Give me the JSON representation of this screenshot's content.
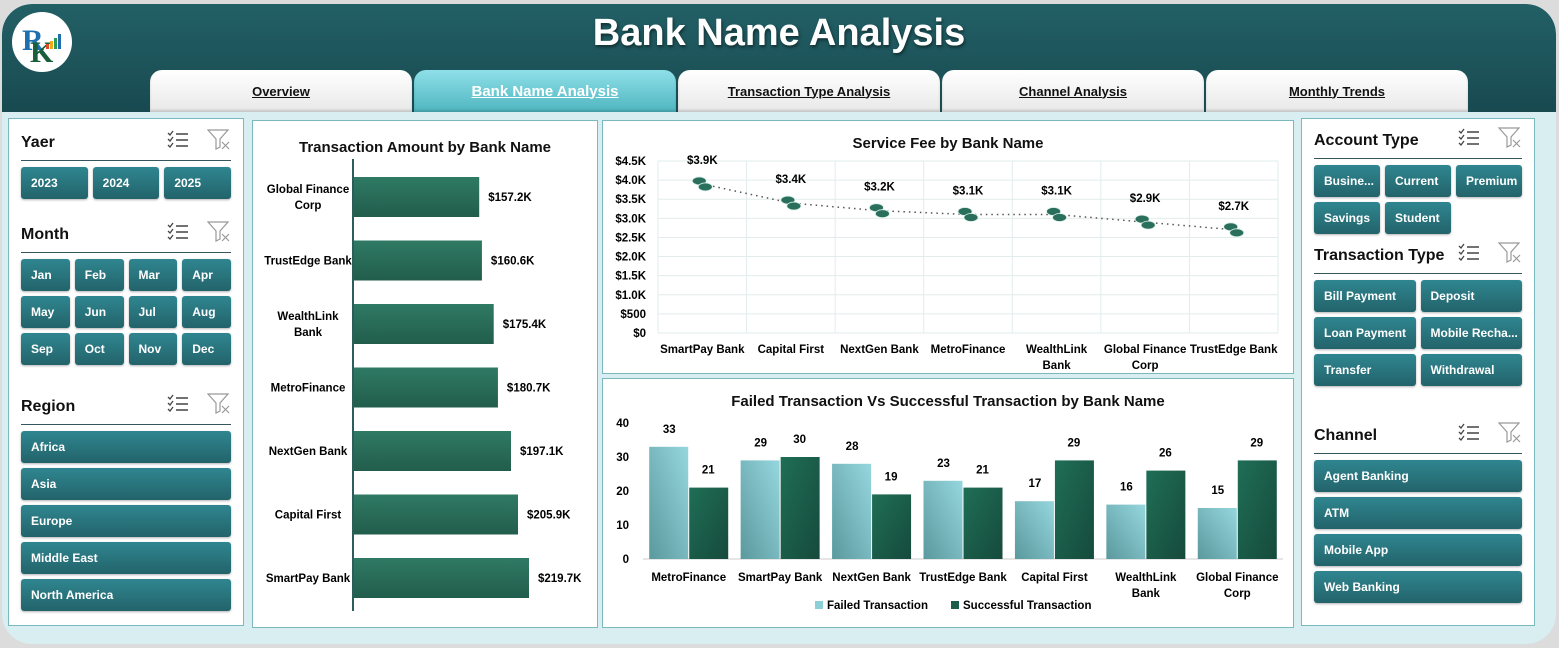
{
  "header": {
    "title": "Bank Name Analysis",
    "tabs": [
      {
        "label": "Overview",
        "active": false
      },
      {
        "label": "Bank Name Analysis",
        "active": true
      },
      {
        "label": "Transaction Type Analysis",
        "active": false
      },
      {
        "label": "Channel Analysis",
        "active": false
      },
      {
        "label": "Monthly Trends",
        "active": false
      }
    ]
  },
  "slicers": {
    "year": {
      "title": "Yaer",
      "items": [
        "2023",
        "2024",
        "2025"
      ]
    },
    "month": {
      "title": "Month",
      "items": [
        "Jan",
        "Feb",
        "Mar",
        "Apr",
        "May",
        "Jun",
        "Jul",
        "Aug",
        "Sep",
        "Oct",
        "Nov",
        "Dec"
      ]
    },
    "region": {
      "title": "Region",
      "items": [
        "Africa",
        "Asia",
        "Europe",
        "Middle East",
        "North America"
      ]
    },
    "account_type": {
      "title": "Account Type",
      "items": [
        "Busine...",
        "Current",
        "Premium",
        "Savings",
        "Student"
      ]
    },
    "transaction_type": {
      "title": "Transaction Type",
      "items": [
        "Bill Payment",
        "Deposit",
        "Loan Payment",
        "Mobile Recha...",
        "Transfer",
        "Withdrawal"
      ]
    },
    "channel": {
      "title": "Channel",
      "items": [
        "Agent Banking",
        "ATM",
        "Mobile App",
        "Web Banking"
      ]
    }
  },
  "icons": {
    "multiselect": "multi-select-icon",
    "clear_filter": "clear-filter-icon"
  },
  "colors": {
    "header": "#1f5a60",
    "slicer_button": "#2a7680",
    "bar_dark": "#2a6e5c",
    "failed": "#8ccfd8",
    "success": "#1a5e4a",
    "active_tab": "#5fc4ce"
  },
  "chart_data": [
    {
      "type": "bar",
      "orientation": "horizontal",
      "title": "Transaction Amount by Bank Name",
      "categories": [
        "Global Finance Corp",
        "TrustEdge Bank",
        "WealthLink Bank",
        "MetroFinance",
        "NextGen Bank",
        "Capital First",
        "SmartPay Bank"
      ],
      "values": [
        157.2,
        160.6,
        175.4,
        180.7,
        197.1,
        205.9,
        219.7
      ],
      "labels": [
        "$157.2K",
        "$160.6K",
        "$175.4K",
        "$180.7K",
        "$197.1K",
        "$205.9K",
        "$219.7K"
      ],
      "xlabel": "",
      "ylabel": ""
    },
    {
      "type": "line",
      "title": "Service Fee by Bank Name",
      "categories": [
        "SmartPay Bank",
        "Capital First",
        "NextGen Bank",
        "MetroFinance",
        "WealthLink Bank",
        "Global Finance Corp",
        "TrustEdge Bank"
      ],
      "values": [
        3900,
        3400,
        3200,
        3100,
        3100,
        2900,
        2700
      ],
      "labels": [
        "$3.9K",
        "$3.4K",
        "$3.2K",
        "$3.1K",
        "$3.1K",
        "$2.9K",
        "$2.7K"
      ],
      "yticks": [
        "$4.5K",
        "$4.0K",
        "$3.5K",
        "$3.0K",
        "$2.5K",
        "$2.0K",
        "$1.5K",
        "$1.0K",
        "$500",
        "$0"
      ],
      "ylim": [
        0,
        4500
      ],
      "grid": true
    },
    {
      "type": "bar",
      "title": "Failed Transaction Vs Successful Transaction by Bank Name",
      "categories": [
        "MetroFinance",
        "SmartPay Bank",
        "NextGen Bank",
        "TrustEdge Bank",
        "Capital First",
        "WealthLink Bank",
        "Global Finance Corp"
      ],
      "series": [
        {
          "name": "Failed Transaction",
          "values": [
            33,
            29,
            28,
            23,
            17,
            16,
            15
          ]
        },
        {
          "name": "Successful Transaction",
          "values": [
            21,
            30,
            19,
            21,
            29,
            26,
            29
          ]
        }
      ],
      "yticks": [
        "40",
        "30",
        "20",
        "10",
        "0"
      ],
      "ylim": [
        0,
        40
      ],
      "legend": "bottom"
    }
  ]
}
